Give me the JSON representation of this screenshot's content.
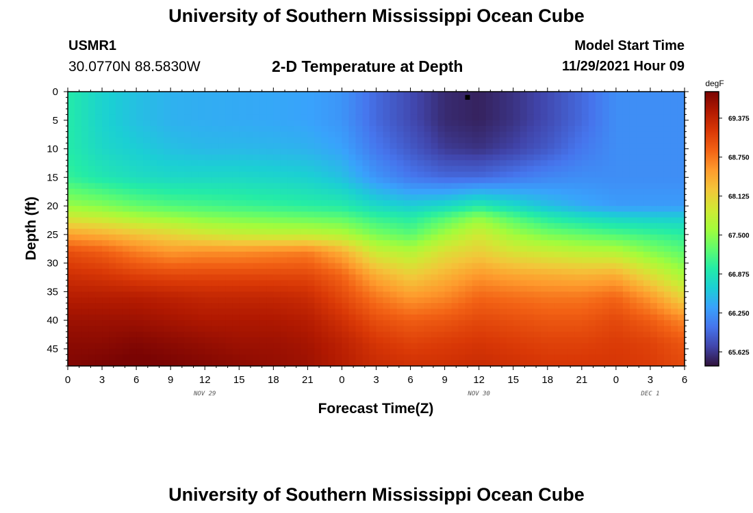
{
  "header": {
    "title": "University of Southern Mississippi Ocean Cube",
    "station": "USMR1",
    "coords": "30.0770N  88.5830W",
    "subtitle": "2-D Temperature at Depth",
    "model_label": "Model Start Time",
    "model_time": "11/29/2021 Hour 09"
  },
  "footer": {
    "title": "University of Southern Mississippi Ocean Cube"
  },
  "chart_data": {
    "type": "heatmap",
    "title": "2-D Temperature at Depth",
    "xlabel": "Forecast Time(Z)",
    "ylabel": "Depth (ft)",
    "x_ticks": [
      "0",
      "3",
      "6",
      "9",
      "12",
      "15",
      "18",
      "21",
      "0",
      "3",
      "6",
      "9",
      "12",
      "15",
      "18",
      "21",
      "0",
      "3",
      "6"
    ],
    "x_range_hours": [
      0,
      54
    ],
    "date_labels": [
      {
        "text": "NOV 29",
        "hour": 12
      },
      {
        "text": "NOV 30",
        "hour": 36
      },
      {
        "text": "DEC 1",
        "hour": 51
      }
    ],
    "y_ticks": [
      "0",
      "5",
      "10",
      "15",
      "20",
      "25",
      "30",
      "35",
      "40",
      "45"
    ],
    "y_range_ft": [
      0,
      48
    ],
    "y_reversed": true,
    "colorbar": {
      "unit": "degF",
      "labels": [
        "69.375",
        "68.750",
        "68.125",
        "67.500",
        "66.875",
        "66.250",
        "65.625"
      ],
      "range": [
        65.4,
        69.8
      ],
      "colors": [
        "#30123b",
        "#4145ab",
        "#4675ed",
        "#39a2fc",
        "#1bcfd4",
        "#24eca6",
        "#61fc6c",
        "#a4fc3b",
        "#d1e834",
        "#f3c63a",
        "#fe9b2d",
        "#f36315",
        "#d93806",
        "#b11901",
        "#7a0403"
      ]
    },
    "marker": {
      "hour": 35,
      "depth_ft": 1
    },
    "depth_ft": [
      0,
      5,
      10,
      15,
      20,
      22,
      25,
      28,
      32,
      36,
      40,
      44,
      48
    ],
    "time_hours": [
      0,
      3,
      6,
      9,
      12,
      15,
      18,
      21,
      24,
      27,
      30,
      33,
      36,
      39,
      42,
      45,
      48,
      51,
      54
    ],
    "values_degF": [
      [
        66.95,
        66.7,
        66.55,
        66.45,
        66.42,
        66.4,
        66.38,
        66.35,
        66.25,
        65.95,
        65.75,
        65.55,
        65.5,
        65.6,
        65.75,
        65.95,
        66.2,
        66.2,
        66.2
      ],
      [
        66.95,
        66.7,
        66.55,
        66.45,
        66.42,
        66.4,
        66.38,
        66.35,
        66.25,
        65.95,
        65.75,
        65.55,
        65.5,
        65.6,
        65.75,
        65.95,
        66.2,
        66.2,
        66.2
      ],
      [
        66.95,
        66.75,
        66.65,
        66.55,
        66.5,
        66.5,
        66.48,
        66.45,
        66.35,
        66.05,
        65.85,
        65.65,
        65.6,
        65.7,
        65.85,
        66.05,
        66.2,
        66.2,
        66.2
      ],
      [
        67.05,
        66.9,
        66.8,
        66.75,
        66.75,
        66.75,
        66.72,
        66.68,
        66.55,
        66.25,
        66.05,
        65.95,
        65.95,
        66.05,
        66.15,
        66.2,
        66.2,
        66.2,
        66.2
      ],
      [
        67.55,
        67.45,
        67.3,
        67.2,
        67.15,
        67.1,
        67.05,
        67.0,
        66.95,
        66.75,
        66.65,
        66.75,
        66.95,
        66.75,
        66.55,
        66.4,
        66.3,
        66.3,
        66.3
      ],
      [
        67.9,
        67.8,
        67.65,
        67.55,
        67.45,
        67.4,
        67.35,
        67.3,
        67.25,
        67.05,
        66.95,
        67.2,
        67.5,
        67.2,
        66.95,
        66.8,
        66.7,
        66.65,
        66.65
      ],
      [
        68.5,
        68.4,
        68.25,
        68.1,
        67.95,
        67.85,
        67.8,
        67.8,
        67.7,
        67.4,
        67.25,
        67.6,
        67.9,
        67.6,
        67.4,
        67.3,
        67.2,
        67.1,
        67.0
      ],
      [
        69.0,
        68.9,
        68.7,
        68.55,
        68.6,
        68.6,
        68.65,
        68.7,
        68.4,
        67.85,
        67.7,
        68.0,
        68.15,
        67.95,
        67.85,
        67.75,
        67.7,
        67.45,
        67.25
      ],
      [
        69.25,
        69.2,
        69.1,
        69.05,
        69.05,
        69.05,
        69.05,
        69.05,
        68.85,
        68.4,
        68.15,
        68.35,
        68.55,
        68.45,
        68.4,
        68.35,
        68.4,
        68.0,
        67.6
      ],
      [
        69.45,
        69.45,
        69.45,
        69.4,
        69.35,
        69.35,
        69.35,
        69.3,
        69.05,
        68.75,
        68.55,
        68.65,
        68.85,
        68.8,
        68.75,
        68.75,
        68.85,
        68.55,
        68.1
      ],
      [
        69.6,
        69.6,
        69.6,
        69.55,
        69.5,
        69.5,
        69.5,
        69.45,
        69.25,
        69.0,
        68.9,
        68.95,
        69.05,
        69.0,
        68.95,
        68.95,
        69.05,
        68.9,
        68.65
      ],
      [
        69.7,
        69.7,
        69.75,
        69.7,
        69.65,
        69.6,
        69.6,
        69.55,
        69.4,
        69.2,
        69.1,
        69.15,
        69.2,
        69.15,
        69.1,
        69.1,
        69.15,
        69.1,
        68.95
      ],
      [
        69.75,
        69.8,
        69.85,
        69.8,
        69.75,
        69.7,
        69.65,
        69.6,
        69.45,
        69.3,
        69.25,
        69.25,
        69.3,
        69.25,
        69.2,
        69.2,
        69.2,
        69.15,
        69.05
      ]
    ]
  }
}
